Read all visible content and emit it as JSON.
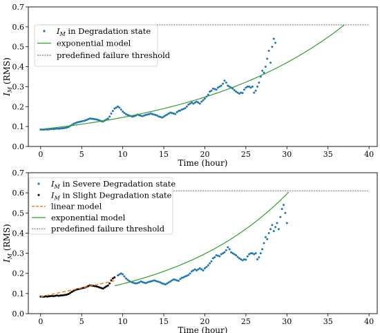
{
  "chart_data": [
    {
      "type": "scatter",
      "xlabel": "Time (hour)",
      "ylabel": "I_M (RMS)",
      "ylabel_main": "I",
      "ylabel_sub": "M",
      "ylabel_suffix": " (RMS)",
      "xlim": [
        -1.5,
        41
      ],
      "ylim": [
        0,
        0.7
      ],
      "xticks": [
        0,
        5,
        10,
        15,
        20,
        25,
        30,
        35,
        40
      ],
      "yticks": [
        0.0,
        0.1,
        0.2,
        0.3,
        0.4,
        0.5,
        0.6,
        0.7
      ],
      "grid": false,
      "legend_position": "upper-left",
      "series": [
        {
          "name": "I_M in Degradation state",
          "legend_main": "I",
          "legend_sub": "M",
          "legend_rest": " in Degradation state",
          "kind": "scatter",
          "color": "#1f77b4",
          "x": [
            0,
            0.2,
            0.4,
            0.6,
            0.8,
            1,
            1.2,
            1.4,
            1.6,
            1.8,
            2,
            2.2,
            2.4,
            2.6,
            2.8,
            3,
            3.2,
            3.4,
            3.6,
            3.8,
            4,
            4.2,
            4.4,
            4.6,
            4.8,
            5,
            5.2,
            5.4,
            5.6,
            5.8,
            6,
            6.2,
            6.4,
            6.6,
            6.8,
            7,
            7.2,
            7.4,
            7.6,
            7.8,
            8,
            8.2,
            8.4,
            8.6,
            8.8,
            9,
            9.2,
            9.4,
            9.6,
            9.8,
            10,
            10.2,
            10.4,
            10.6,
            10.8,
            11,
            11.2,
            11.4,
            11.6,
            11.8,
            12,
            12.2,
            12.4,
            12.6,
            12.8,
            13,
            13.2,
            13.4,
            13.6,
            13.8,
            14,
            14.2,
            14.4,
            14.6,
            14.8,
            15,
            15.2,
            15.4,
            15.6,
            15.8,
            16,
            16.2,
            16.4,
            16.6,
            16.8,
            17,
            17.2,
            17.4,
            17.6,
            17.8,
            18,
            18.2,
            18.4,
            18.6,
            18.8,
            19,
            19.2,
            19.4,
            19.6,
            19.8,
            20,
            20.2,
            20.4,
            20.6,
            20.8,
            21,
            21.2,
            21.4,
            21.6,
            21.8,
            22,
            22.2,
            22.4,
            22.6,
            22.8,
            23,
            23.2,
            23.4,
            23.6,
            23.8,
            24,
            24.2,
            24.4,
            24.6,
            24.8,
            25,
            25.2,
            25.4,
            25.6,
            25.8,
            26,
            26.2,
            26.4,
            26.6,
            26.8,
            27,
            27.2,
            27.4,
            27.6,
            27.8,
            28,
            28.2,
            28.4,
            28.6
          ],
          "y": [
            0.085,
            0.085,
            0.084,
            0.086,
            0.085,
            0.086,
            0.087,
            0.088,
            0.087,
            0.089,
            0.09,
            0.089,
            0.09,
            0.091,
            0.092,
            0.093,
            0.095,
            0.098,
            0.103,
            0.108,
            0.113,
            0.117,
            0.12,
            0.122,
            0.124,
            0.126,
            0.128,
            0.13,
            0.133,
            0.137,
            0.14,
            0.139,
            0.138,
            0.137,
            0.135,
            0.133,
            0.13,
            0.127,
            0.125,
            0.13,
            0.135,
            0.14,
            0.15,
            0.165,
            0.178,
            0.19,
            0.195,
            0.2,
            0.195,
            0.185,
            0.175,
            0.168,
            0.162,
            0.158,
            0.155,
            0.152,
            0.15,
            0.152,
            0.155,
            0.16,
            0.157,
            0.154,
            0.152,
            0.155,
            0.158,
            0.16,
            0.162,
            0.165,
            0.163,
            0.16,
            0.158,
            0.155,
            0.15,
            0.148,
            0.145,
            0.15,
            0.155,
            0.16,
            0.165,
            0.17,
            0.168,
            0.165,
            0.163,
            0.172,
            0.178,
            0.18,
            0.185,
            0.188,
            0.192,
            0.2,
            0.21,
            0.215,
            0.22,
            0.215,
            0.22,
            0.225,
            0.22,
            0.215,
            0.225,
            0.232,
            0.24,
            0.25,
            0.26,
            0.275,
            0.28,
            0.29,
            0.288,
            0.285,
            0.295,
            0.3,
            0.305,
            0.315,
            0.33,
            0.32,
            0.305,
            0.3,
            0.295,
            0.29,
            0.282,
            0.275,
            0.27,
            0.265,
            0.27,
            0.268,
            0.285,
            0.295,
            0.3,
            0.3,
            0.295,
            0.3,
            0.27,
            0.28,
            0.3,
            0.32,
            0.35,
            0.38,
            0.37,
            0.4,
            0.44,
            0.48,
            0.42,
            0.5,
            0.54,
            0.52
          ]
        },
        {
          "name": "exponential model",
          "kind": "line",
          "color": "#2ca02c",
          "a": 0.0858,
          "b": 0.053,
          "x_start": 0,
          "x_end": 37
        },
        {
          "name": "predefined failure threshold",
          "kind": "hline",
          "color": "#555555",
          "y": 0.61,
          "x_start": 0,
          "x_end": 40
        }
      ]
    },
    {
      "type": "scatter",
      "xlabel": "Time (hour)",
      "ylabel": "I_M (RMS)",
      "ylabel_main": "I",
      "ylabel_sub": "M",
      "ylabel_suffix": " (RMS)",
      "xlim": [
        -1.5,
        41
      ],
      "ylim": [
        0,
        0.7
      ],
      "xticks": [
        0,
        5,
        10,
        15,
        20,
        25,
        30,
        35,
        40
      ],
      "yticks": [
        0.0,
        0.1,
        0.2,
        0.3,
        0.4,
        0.5,
        0.6,
        0.7
      ],
      "grid": false,
      "legend_position": "upper-left",
      "series": [
        {
          "name": "I_M in Severe Degradation state",
          "legend_main": "I",
          "legend_sub": "M",
          "legend_rest": " in Severe Degradation state",
          "kind": "scatter",
          "color": "#1f77b4",
          "x": [
            9.4,
            9.6,
            9.8,
            10,
            10.2,
            10.4,
            10.6,
            10.8,
            11,
            11.2,
            11.4,
            11.6,
            11.8,
            12,
            12.2,
            12.4,
            12.6,
            12.8,
            13,
            13.2,
            13.4,
            13.6,
            13.8,
            14,
            14.2,
            14.4,
            14.6,
            14.8,
            15,
            15.2,
            15.4,
            15.6,
            15.8,
            16,
            16.2,
            16.4,
            16.6,
            16.8,
            17,
            17.2,
            17.4,
            17.6,
            17.8,
            18,
            18.2,
            18.4,
            18.6,
            18.8,
            19,
            19.2,
            19.4,
            19.6,
            19.8,
            20,
            20.2,
            20.4,
            20.6,
            20.8,
            21,
            21.2,
            21.4,
            21.6,
            21.8,
            22,
            22.2,
            22.4,
            22.6,
            22.8,
            23,
            23.2,
            23.4,
            23.6,
            23.8,
            24,
            24.2,
            24.4,
            24.6,
            24.8,
            25,
            25.2,
            25.4,
            25.6,
            25.8,
            26,
            26.2,
            26.4,
            26.6,
            26.8,
            27,
            27.2,
            27.4,
            27.6,
            27.8,
            28,
            28.2,
            28.4,
            28.6,
            28.8,
            29,
            29.2,
            29.4,
            29.6,
            29.8,
            30
          ],
          "y": [
            0.19,
            0.195,
            0.2,
            0.195,
            0.185,
            0.175,
            0.168,
            0.162,
            0.158,
            0.155,
            0.152,
            0.15,
            0.152,
            0.155,
            0.16,
            0.157,
            0.154,
            0.152,
            0.155,
            0.158,
            0.16,
            0.162,
            0.165,
            0.163,
            0.16,
            0.158,
            0.155,
            0.15,
            0.148,
            0.145,
            0.15,
            0.155,
            0.16,
            0.165,
            0.17,
            0.168,
            0.165,
            0.163,
            0.172,
            0.178,
            0.18,
            0.185,
            0.188,
            0.192,
            0.2,
            0.21,
            0.215,
            0.22,
            0.215,
            0.22,
            0.225,
            0.22,
            0.215,
            0.225,
            0.232,
            0.24,
            0.25,
            0.26,
            0.275,
            0.28,
            0.29,
            0.288,
            0.285,
            0.295,
            0.3,
            0.305,
            0.315,
            0.33,
            0.32,
            0.305,
            0.3,
            0.295,
            0.29,
            0.282,
            0.275,
            0.27,
            0.265,
            0.27,
            0.268,
            0.285,
            0.295,
            0.3,
            0.3,
            0.295,
            0.3,
            0.27,
            0.28,
            0.3,
            0.32,
            0.35,
            0.38,
            0.37,
            0.4,
            0.42,
            0.44,
            0.41,
            0.43,
            0.45,
            0.42,
            0.48,
            0.52,
            0.54,
            0.5,
            0.45
          ]
        },
        {
          "name": "I_M in Slight Degradation state",
          "legend_main": "I",
          "legend_sub": "M",
          "legend_rest": " in Slight Degradation state",
          "kind": "scatter",
          "color": "#000000",
          "x": [
            0,
            0.2,
            0.4,
            0.6,
            0.8,
            1,
            1.2,
            1.4,
            1.6,
            1.8,
            2,
            2.2,
            2.4,
            2.6,
            2.8,
            3,
            3.2,
            3.4,
            3.6,
            3.8,
            4,
            4.2,
            4.4,
            4.6,
            4.8,
            5,
            5.2,
            5.4,
            5.6,
            5.8,
            6,
            6.2,
            6.4,
            6.6,
            6.8,
            7,
            7.2,
            7.4,
            7.6,
            7.8,
            8,
            8.2,
            8.4,
            8.6,
            8.8,
            9
          ],
          "y": [
            0.085,
            0.085,
            0.084,
            0.086,
            0.085,
            0.086,
            0.087,
            0.088,
            0.087,
            0.089,
            0.09,
            0.089,
            0.09,
            0.091,
            0.092,
            0.093,
            0.095,
            0.098,
            0.103,
            0.108,
            0.113,
            0.117,
            0.12,
            0.122,
            0.124,
            0.126,
            0.128,
            0.13,
            0.133,
            0.137,
            0.14,
            0.139,
            0.138,
            0.137,
            0.135,
            0.133,
            0.13,
            0.127,
            0.125,
            0.13,
            0.135,
            0.14,
            0.15,
            0.165,
            0.175,
            0.18
          ]
        },
        {
          "name": "linear model",
          "kind": "dashed-line",
          "color": "#ff7f0e",
          "slope": 0.0088,
          "intercept": 0.084,
          "x_start": 0,
          "x_end": 9
        },
        {
          "name": "exponential model",
          "kind": "line",
          "color": "#2ca02c",
          "a": 0.074,
          "b": 0.0695,
          "x_start": 9,
          "x_end": 30.2
        },
        {
          "name": "predefined failure threshold",
          "kind": "hline",
          "color": "#555555",
          "y": 0.61,
          "x_start": 10,
          "x_end": 40
        }
      ]
    }
  ]
}
